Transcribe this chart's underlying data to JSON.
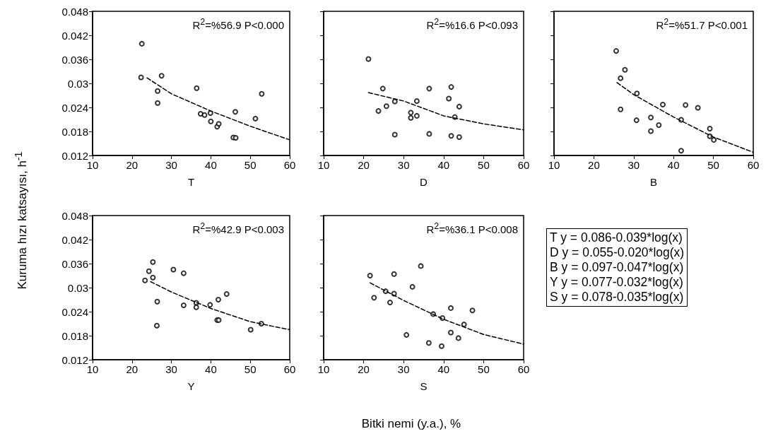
{
  "chart_data": [
    {
      "type": "scatter",
      "ylabel": "Kuruma hızı katsayısı, h$^{-1}$",
      "xlabel": "T",
      "annotations": [
        "R$^{2}$=%56.9 P<0.000"
      ],
      "xlim": [
        10,
        60
      ],
      "xticks": [
        10,
        20,
        30,
        40,
        50,
        60
      ],
      "ylim": [
        0.012,
        0.048
      ],
      "yticks": [
        0.012,
        0.018,
        0.024,
        0.03,
        0.036,
        0.042,
        0.048
      ],
      "grid": false,
      "series": [
        {
          "type": "scatter",
          "marker": "circle",
          "color": "#000000",
          "x": [
            22.5,
            22.3,
            26.5,
            26.5,
            27.5,
            36.4,
            37.4,
            38.4,
            39.9,
            40.0,
            41.6,
            42.0,
            46.2,
            45.7,
            46.3,
            51.3,
            52.9
          ],
          "values": [
            0.0399,
            0.0315,
            0.0281,
            0.0251,
            0.0319,
            0.0288,
            0.0224,
            0.0221,
            0.0226,
            0.0205,
            0.0192,
            0.0199,
            0.0229,
            0.0165,
            0.0164,
            0.0212,
            0.0274
          ]
        },
        {
          "type": "line",
          "marker": "none",
          "color": "#000000",
          "line_style": "dashed",
          "x": [
            23.8,
            30,
            40,
            50,
            60
          ],
          "values": [
            0.0314,
            0.0274,
            0.0231,
            0.0193,
            0.0159
          ]
        }
      ]
    },
    {
      "type": "scatter",
      "xlabel": "D",
      "annotations": [
        "R$^{2}$=%16.6 P<0.093"
      ],
      "xlim": [
        10,
        60
      ],
      "xticks": [
        10,
        20,
        30,
        40,
        50,
        60
      ],
      "ylim": [
        0.012,
        0.048
      ],
      "yticks": [
        0.012,
        0.018,
        0.024,
        0.03,
        0.036,
        0.042,
        0.048
      ],
      "tick_labels": "x",
      "grid": false,
      "series": [
        {
          "type": "scatter",
          "marker": "circle",
          "color": "#000000",
          "x": [
            21.2,
            23.7,
            24.8,
            25.7,
            27.8,
            27.8,
            31.8,
            31.8,
            33.3,
            33.3,
            36.4,
            36.4,
            41.3,
            41.9,
            41.9,
            42.8,
            43.9,
            43.9
          ],
          "values": [
            0.0361,
            0.0231,
            0.0287,
            0.0243,
            0.0255,
            0.0172,
            0.0227,
            0.0214,
            0.0219,
            0.0256,
            0.0287,
            0.0174,
            0.0262,
            0.0291,
            0.0169,
            0.0216,
            0.0242,
            0.0166
          ]
        },
        {
          "type": "line",
          "marker": "none",
          "color": "#000000",
          "line_style": "dashed",
          "x": [
            21.2,
            30,
            40,
            50,
            60
          ],
          "values": [
            0.0277,
            0.0256,
            0.0219,
            0.0199,
            0.0184
          ]
        }
      ]
    },
    {
      "type": "scatter",
      "xlabel": "B",
      "annotations": [
        "R$^{2}$=%51.7 P<0.001"
      ],
      "xlim": [
        10,
        60
      ],
      "xticks": [
        10,
        20,
        30,
        40,
        50,
        60
      ],
      "ylim": [
        0.012,
        0.048
      ],
      "yticks": [
        0.012,
        0.018,
        0.024,
        0.03,
        0.036,
        0.042,
        0.048
      ],
      "tick_labels": "x",
      "grid": false,
      "series": [
        {
          "type": "scatter",
          "marker": "circle",
          "color": "#000000",
          "x": [
            25.6,
            27.8,
            26.7,
            26.7,
            30.8,
            30.7,
            34.3,
            34.3,
            36.3,
            37.3,
            41.9,
            41.9,
            43.0,
            46.1,
            49.1,
            49.1,
            50.1
          ],
          "values": [
            0.0381,
            0.0334,
            0.0313,
            0.0235,
            0.0275,
            0.0208,
            0.0215,
            0.0181,
            0.0196,
            0.0247,
            0.0209,
            0.0132,
            0.0246,
            0.0239,
            0.0187,
            0.0168,
            0.0159
          ]
        },
        {
          "type": "line",
          "marker": "none",
          "color": "#000000",
          "line_style": "dashed",
          "x": [
            25.8,
            30,
            40,
            50,
            60
          ],
          "values": [
            0.0302,
            0.0272,
            0.0216,
            0.0166,
            0.0128
          ]
        }
      ]
    },
    {
      "type": "scatter",
      "xlabel": "Y",
      "annotations": [
        "R$^{2}$=%42.9 P<0.003"
      ],
      "xlim": [
        10,
        60
      ],
      "xticks": [
        10,
        20,
        30,
        40,
        50,
        60
      ],
      "ylim": [
        0.012,
        0.048
      ],
      "yticks": [
        0.012,
        0.018,
        0.024,
        0.03,
        0.036,
        0.042,
        0.048
      ],
      "grid": false,
      "series": [
        {
          "type": "scatter",
          "marker": "circle",
          "color": "#000000",
          "x": [
            23.3,
            24.3,
            25.3,
            25.3,
            26.4,
            26.3,
            30.5,
            33.1,
            33.1,
            36.3,
            36.3,
            39.8,
            41.9,
            41.6,
            42.0,
            44.0,
            50.1,
            52.8
          ],
          "values": [
            0.0318,
            0.0341,
            0.0364,
            0.0325,
            0.0265,
            0.0205,
            0.0345,
            0.0336,
            0.0256,
            0.0262,
            0.0251,
            0.0257,
            0.027,
            0.0219,
            0.0219,
            0.0284,
            0.0195,
            0.021
          ]
        },
        {
          "type": "line",
          "marker": "none",
          "color": "#000000",
          "line_style": "dashed",
          "x": [
            24.7,
            30,
            40,
            50,
            60
          ],
          "values": [
            0.0315,
            0.0289,
            0.0248,
            0.0215,
            0.0195
          ]
        }
      ]
    },
    {
      "type": "scatter",
      "xlabel": "S",
      "annotations": [
        "R$^{2}$=%36.1 P<0.008"
      ],
      "xlim": [
        10,
        60
      ],
      "xticks": [
        10,
        20,
        30,
        40,
        50,
        60
      ],
      "ylim": [
        0.012,
        0.048
      ],
      "yticks": [
        0.012,
        0.018,
        0.024,
        0.03,
        0.036,
        0.042,
        0.048
      ],
      "tick_labels": "x",
      "grid": false,
      "series": [
        {
          "type": "scatter",
          "marker": "circle",
          "color": "#000000",
          "x": [
            21.6,
            22.6,
            27.6,
            25.5,
            27.6,
            26.6,
            32.2,
            34.3,
            30.7,
            37.4,
            36.3,
            39.7,
            39.5,
            41.8,
            41.8,
            43.7,
            45.1,
            47.2
          ],
          "values": [
            0.033,
            0.0275,
            0.0334,
            0.0291,
            0.0285,
            0.0263,
            0.0302,
            0.0354,
            0.0182,
            0.0234,
            0.0162,
            0.0224,
            0.0154,
            0.0249,
            0.0188,
            0.0174,
            0.0208,
            0.0243
          ]
        },
        {
          "type": "line",
          "marker": "none",
          "color": "#000000",
          "line_style": "dashed",
          "x": [
            21.6,
            30,
            40,
            50,
            60
          ],
          "values": [
            0.0312,
            0.0268,
            0.0221,
            0.0183,
            0.0159
          ]
        }
      ]
    },
    {
      "type": "other",
      "xlabel": "Bitki nemi (y.a.), %",
      "annotations": [
        "T y = 0.086-0.039*log(x)",
        "D y = 0.055-0.020*log(x)",
        "B y = 0.097-0.047*log(x)",
        "Y y = 0.077-0.032*log(x)",
        "S y = 0.078-0.035*log(x)"
      ]
    }
  ]
}
